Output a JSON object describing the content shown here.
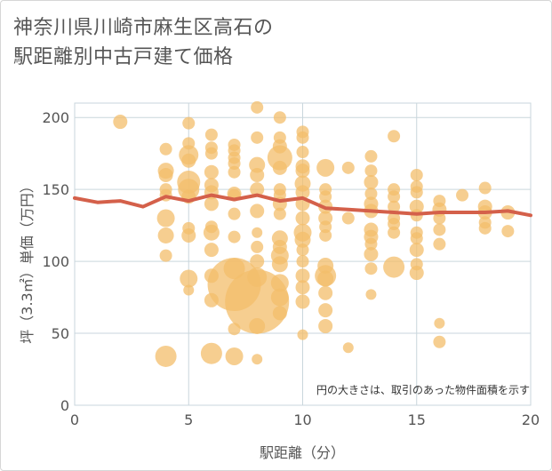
{
  "chart_data": {
    "type": "scatter",
    "title": "神奈川県川崎市麻生区高石の\n駅距離別中古戸建て価格",
    "xlabel": "駅距離（分）",
    "ylabel": "坪（3.3㎡）単価（万円）",
    "xlim": [
      0,
      20
    ],
    "ylim": [
      0,
      210
    ],
    "x_ticks": [
      0,
      5,
      10,
      15,
      20
    ],
    "y_ticks": [
      0,
      50,
      100,
      150,
      200
    ],
    "grid": true,
    "note": "円の大きさは、取引のあった物件面積を示す",
    "colors": {
      "bubble": "#f3bd6b",
      "line": "#d4604a",
      "grid": "#c9d6dc"
    },
    "series": [
      {
        "type": "bubble",
        "points": [
          [
            2,
            197,
            8
          ],
          [
            4,
            178,
            7
          ],
          [
            4,
            163,
            9
          ],
          [
            4,
            160,
            8
          ],
          [
            4,
            150,
            7
          ],
          [
            4,
            146,
            7
          ],
          [
            4,
            130,
            10
          ],
          [
            4,
            118,
            9
          ],
          [
            4,
            104,
            7
          ],
          [
            4,
            34,
            12
          ],
          [
            5,
            196,
            7
          ],
          [
            5,
            182,
            7
          ],
          [
            5,
            174,
            11
          ],
          [
            5,
            170,
            8
          ],
          [
            5,
            155,
            13
          ],
          [
            5,
            150,
            12
          ],
          [
            5,
            145,
            8
          ],
          [
            5,
            123,
            7
          ],
          [
            5,
            118,
            8
          ],
          [
            5,
            88,
            10
          ],
          [
            5,
            80,
            6
          ],
          [
            6,
            188,
            7
          ],
          [
            6,
            179,
            7
          ],
          [
            6,
            175,
            7
          ],
          [
            6,
            162,
            8
          ],
          [
            6,
            153,
            8
          ],
          [
            6,
            148,
            8
          ],
          [
            6,
            140,
            8
          ],
          [
            6,
            124,
            7
          ],
          [
            6,
            120,
            9
          ],
          [
            6,
            108,
            8
          ],
          [
            6,
            90,
            8
          ],
          [
            6,
            73,
            8
          ],
          [
            6,
            36,
            12
          ],
          [
            7,
            181,
            7
          ],
          [
            7,
            177,
            7
          ],
          [
            7,
            172,
            7
          ],
          [
            7,
            168,
            7
          ],
          [
            7,
            162,
            7
          ],
          [
            7,
            147,
            8
          ],
          [
            7,
            146,
            7
          ],
          [
            7,
            133,
            7
          ],
          [
            7,
            117,
            7
          ],
          [
            7,
            95,
            12
          ],
          [
            7,
            84,
            30
          ],
          [
            7,
            53,
            7
          ],
          [
            7,
            34,
            10
          ],
          [
            8,
            207,
            7
          ],
          [
            8,
            186,
            7
          ],
          [
            8,
            167,
            9
          ],
          [
            8,
            160,
            8
          ],
          [
            8,
            150,
            8
          ],
          [
            8,
            135,
            8
          ],
          [
            8,
            120,
            6
          ],
          [
            8,
            110,
            7
          ],
          [
            8,
            100,
            8
          ],
          [
            8,
            89,
            11
          ],
          [
            8,
            72,
            36
          ],
          [
            8,
            55,
            9
          ],
          [
            8,
            32,
            6
          ],
          [
            9,
            200,
            7
          ],
          [
            9,
            186,
            7
          ],
          [
            9,
            180,
            8
          ],
          [
            9,
            172,
            14
          ],
          [
            9,
            165,
            8
          ],
          [
            9,
            150,
            7
          ],
          [
            9,
            146,
            7
          ],
          [
            9,
            140,
            8
          ],
          [
            9,
            133,
            7
          ],
          [
            9,
            116,
            9
          ],
          [
            9,
            110,
            8
          ],
          [
            9,
            104,
            10
          ],
          [
            9,
            98,
            9
          ],
          [
            9,
            85,
            10
          ],
          [
            9,
            75,
            10
          ],
          [
            9,
            64,
            8
          ],
          [
            10,
            190,
            7
          ],
          [
            10,
            186,
            7
          ],
          [
            10,
            176,
            7
          ],
          [
            10,
            166,
            8
          ],
          [
            10,
            163,
            8
          ],
          [
            10,
            154,
            9
          ],
          [
            10,
            148,
            8
          ],
          [
            10,
            140,
            8
          ],
          [
            10,
            130,
            8
          ],
          [
            10,
            120,
            10
          ],
          [
            10,
            115,
            9
          ],
          [
            10,
            108,
            7
          ],
          [
            10,
            100,
            7
          ],
          [
            10,
            90,
            8
          ],
          [
            10,
            82,
            8
          ],
          [
            10,
            72,
            8
          ],
          [
            10,
            49,
            6
          ],
          [
            11,
            165,
            10
          ],
          [
            11,
            150,
            7
          ],
          [
            11,
            145,
            7
          ],
          [
            11,
            138,
            8
          ],
          [
            11,
            130,
            8
          ],
          [
            11,
            124,
            7
          ],
          [
            11,
            118,
            7
          ],
          [
            11,
            97,
            9
          ],
          [
            11,
            90,
            12
          ],
          [
            11,
            88,
            9
          ],
          [
            11,
            78,
            8
          ],
          [
            11,
            66,
            8
          ],
          [
            11,
            55,
            8
          ],
          [
            12,
            165,
            7
          ],
          [
            12,
            130,
            7
          ],
          [
            12,
            40,
            6
          ],
          [
            13,
            173,
            7
          ],
          [
            13,
            163,
            7
          ],
          [
            13,
            155,
            8
          ],
          [
            13,
            147,
            7
          ],
          [
            13,
            140,
            8
          ],
          [
            13,
            135,
            8
          ],
          [
            13,
            122,
            8
          ],
          [
            13,
            117,
            8
          ],
          [
            13,
            112,
            7
          ],
          [
            13,
            105,
            8
          ],
          [
            13,
            95,
            7
          ],
          [
            13,
            77,
            6
          ],
          [
            14,
            187,
            7
          ],
          [
            14,
            150,
            7
          ],
          [
            14,
            145,
            7
          ],
          [
            14,
            138,
            7
          ],
          [
            14,
            130,
            7
          ],
          [
            14,
            126,
            7
          ],
          [
            14,
            120,
            7
          ],
          [
            14,
            96,
            12
          ],
          [
            15,
            160,
            7
          ],
          [
            15,
            152,
            7
          ],
          [
            15,
            148,
            7
          ],
          [
            15,
            138,
            8
          ],
          [
            15,
            132,
            7
          ],
          [
            15,
            120,
            7
          ],
          [
            15,
            116,
            7
          ],
          [
            15,
            108,
            8
          ],
          [
            15,
            98,
            7
          ],
          [
            15,
            92,
            8
          ],
          [
            16,
            142,
            7
          ],
          [
            16,
            136,
            8
          ],
          [
            16,
            130,
            7
          ],
          [
            16,
            122,
            7
          ],
          [
            16,
            112,
            7
          ],
          [
            16,
            57,
            6
          ],
          [
            16,
            44,
            7
          ],
          [
            17,
            146,
            7
          ],
          [
            18,
            151,
            7
          ],
          [
            18,
            138,
            8
          ],
          [
            18,
            134,
            8
          ],
          [
            18,
            127,
            7
          ],
          [
            18,
            123,
            7
          ],
          [
            19,
            134,
            8
          ],
          [
            19,
            121,
            7
          ]
        ]
      },
      {
        "type": "line",
        "x": [
          0,
          1,
          2,
          3,
          4,
          5,
          6,
          7,
          8,
          9,
          10,
          11,
          12,
          13,
          14,
          15,
          16,
          17,
          18,
          19,
          20
        ],
        "y": [
          144,
          141,
          142,
          138,
          145,
          142,
          146,
          143,
          146,
          142,
          144,
          137,
          136,
          135,
          134,
          133,
          134,
          134,
          134,
          135,
          132
        ]
      }
    ]
  }
}
